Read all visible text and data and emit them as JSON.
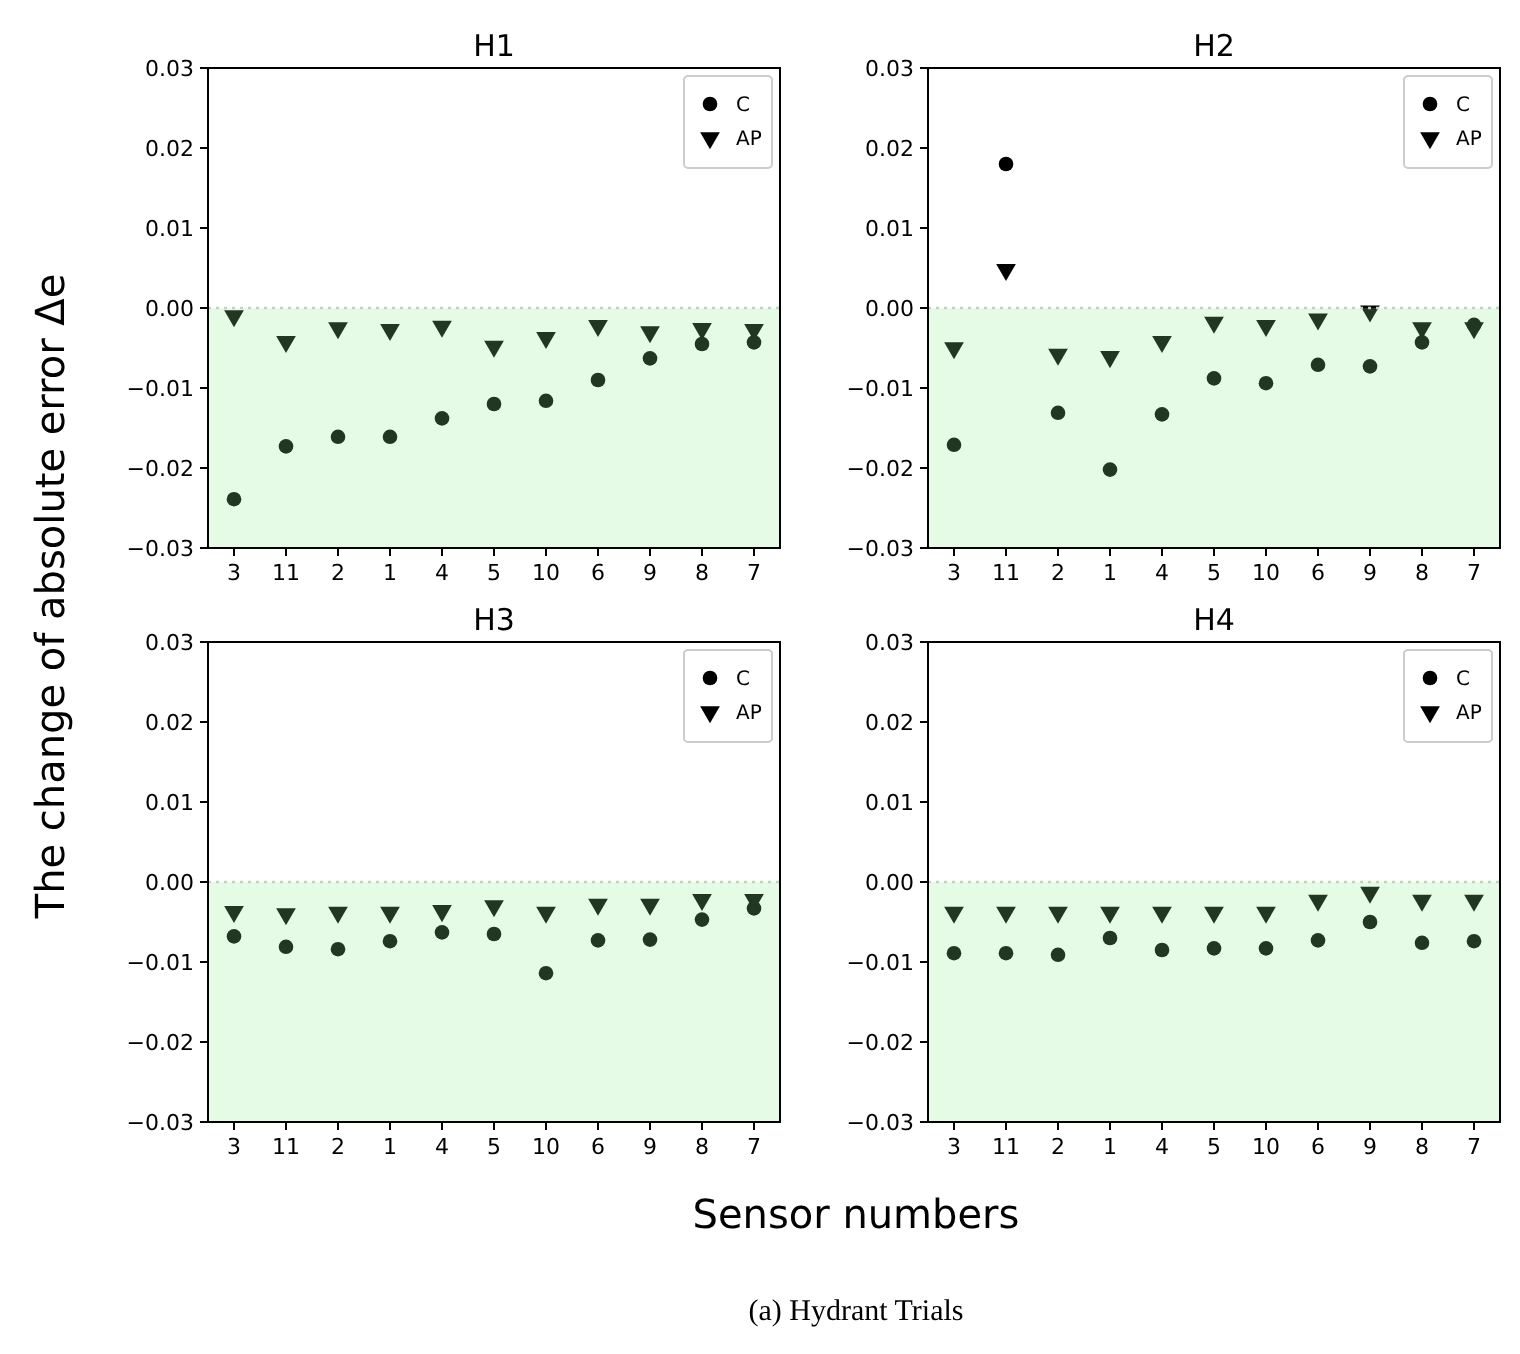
{
  "chart_data": [
    {
      "type": "scatter",
      "title": "H1",
      "ylabel": "The change of absolute error Δe",
      "categories": [
        "3",
        "11",
        "2",
        "1",
        "4",
        "5",
        "10",
        "6",
        "9",
        "8",
        "7"
      ],
      "series": [
        {
          "name": "C",
          "color": "#000000",
          "marker": "circle",
          "values": [
            -0.0239,
            -0.0173,
            -0.0161,
            -0.0161,
            -0.0138,
            -0.012,
            -0.0116,
            -0.009,
            -0.0063,
            -0.0045,
            -0.0043
          ]
        },
        {
          "name": "AP",
          "color": "#000000",
          "marker": "triangle",
          "values": [
            -0.001,
            -0.0042,
            -0.0025,
            -0.0027,
            -0.0023,
            -0.0048,
            -0.0037,
            -0.0022,
            -0.003,
            -0.0026,
            -0.0027
          ]
        }
      ],
      "ylim": [
        -0.03,
        0.03
      ],
      "yticks": [
        {
          "value": -0.03,
          "label": "−0.03"
        },
        {
          "value": -0.02,
          "label": "−0.02"
        },
        {
          "value": -0.01,
          "label": "−0.01"
        },
        {
          "value": 0,
          "label": "0.00"
        },
        0.01,
        0.02,
        0.03
      ],
      "legend": "top right",
      "bands": [
        {
          "axis": "y",
          "from": -0.03,
          "to": 0,
          "color": "#90ee90"
        }
      ],
      "ref_lines": [
        {
          "axis": "y",
          "value": 0,
          "color": "#b8d8b8",
          "line_style": "dotted"
        }
      ]
    },
    {
      "type": "scatter",
      "title": "H2",
      "categories": [
        "3",
        "11",
        "2",
        "1",
        "4",
        "5",
        "10",
        "6",
        "9",
        "8",
        "7"
      ],
      "series": [
        {
          "name": "C",
          "color": "#000000",
          "marker": "circle",
          "values": [
            -0.0171,
            0.018,
            -0.0131,
            -0.0202,
            -0.0133,
            -0.0088,
            -0.0094,
            -0.0071,
            -0.0073,
            -0.0043,
            -0.0021
          ]
        },
        {
          "name": "AP",
          "color": "#000000",
          "marker": "triangle",
          "values": [
            -0.005,
            0.0048,
            -0.0058,
            -0.0061,
            -0.0042,
            -0.0018,
            -0.0022,
            -0.0014,
            -0.0004,
            -0.0025,
            -0.0025
          ]
        }
      ],
      "ylim": [
        -0.03,
        0.03
      ],
      "yticks": [
        {
          "value": -0.03,
          "label": "−0.03"
        },
        {
          "value": -0.02,
          "label": "−0.02"
        },
        {
          "value": -0.01,
          "label": "−0.01"
        },
        {
          "value": 0,
          "label": "0.00"
        },
        0.01,
        0.02,
        0.03
      ],
      "legend": "top right",
      "bands": [
        {
          "axis": "y",
          "from": -0.03,
          "to": 0,
          "color": "#90ee90"
        }
      ],
      "ref_lines": [
        {
          "axis": "y",
          "value": 0,
          "color": "#b8d8b8",
          "line_style": "dotted"
        }
      ]
    },
    {
      "type": "scatter",
      "title": "H3",
      "xlabel": "Sensor numbers",
      "categories": [
        "3",
        "11",
        "2",
        "1",
        "4",
        "5",
        "10",
        "6",
        "9",
        "8",
        "7"
      ],
      "series": [
        {
          "name": "C",
          "color": "#000000",
          "marker": "circle",
          "values": [
            -0.0068,
            -0.0081,
            -0.0084,
            -0.0074,
            -0.0063,
            -0.0065,
            -0.0114,
            -0.0073,
            -0.0072,
            -0.0047,
            -0.0033
          ]
        },
        {
          "name": "AP",
          "color": "#000000",
          "marker": "triangle",
          "values": [
            -0.0037,
            -0.004,
            -0.0038,
            -0.0038,
            -0.0036,
            -0.003,
            -0.0038,
            -0.0028,
            -0.0028,
            -0.0022,
            -0.0022
          ]
        }
      ],
      "ylim": [
        -0.03,
        0.03
      ],
      "yticks": [
        {
          "value": -0.03,
          "label": "−0.03"
        },
        {
          "value": -0.02,
          "label": "−0.02"
        },
        {
          "value": -0.01,
          "label": "−0.01"
        },
        {
          "value": 0,
          "label": "0.00"
        },
        0.01,
        0.02,
        0.03
      ],
      "legend": "top right",
      "bands": [
        {
          "axis": "y",
          "from": -0.03,
          "to": 0,
          "color": "#90ee90"
        }
      ],
      "ref_lines": [
        {
          "axis": "y",
          "value": 0,
          "color": "#b8d8b8",
          "line_style": "dotted"
        }
      ]
    },
    {
      "type": "scatter",
      "title": "H4",
      "annotations": [
        "(a) Hydrant Trials"
      ],
      "categories": [
        "3",
        "11",
        "2",
        "1",
        "4",
        "5",
        "10",
        "6",
        "9",
        "8",
        "7"
      ],
      "series": [
        {
          "name": "C",
          "color": "#000000",
          "marker": "circle",
          "values": [
            -0.0089,
            -0.0089,
            -0.0091,
            -0.007,
            -0.0085,
            -0.0083,
            -0.0083,
            -0.0073,
            -0.005,
            -0.0076,
            -0.0074
          ]
        },
        {
          "name": "AP",
          "color": "#000000",
          "marker": "triangle",
          "values": [
            -0.0038,
            -0.0038,
            -0.0038,
            -0.0038,
            -0.0038,
            -0.0038,
            -0.0038,
            -0.0023,
            -0.0013,
            -0.0023,
            -0.0023
          ]
        }
      ],
      "ylim": [
        -0.03,
        0.03
      ],
      "yticks": [
        {
          "value": -0.03,
          "label": "−0.03"
        },
        {
          "value": -0.02,
          "label": "−0.02"
        },
        {
          "value": -0.01,
          "label": "−0.01"
        },
        {
          "value": 0,
          "label": "0.00"
        },
        0.01,
        0.02,
        0.03
      ],
      "legend": "top right",
      "bands": [
        {
          "axis": "y",
          "from": -0.03,
          "to": 0,
          "color": "#90ee90"
        }
      ],
      "ref_lines": [
        {
          "axis": "y",
          "value": 0,
          "color": "#b8d8b8",
          "line_style": "dotted"
        }
      ]
    }
  ]
}
